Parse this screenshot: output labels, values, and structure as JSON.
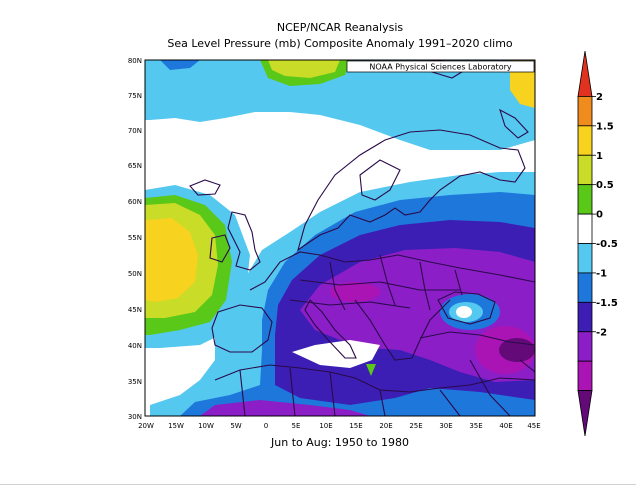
{
  "header": {
    "title_line1": "NCEP/NCAR Reanalysis",
    "title_line2": "Sea Level Pressure (mb) Composite Anomaly 1991–2020 climo"
  },
  "map": {
    "badge": "NOAA Physical Sciences Laboratory",
    "lat_labels": [
      "80N",
      "75N",
      "70N",
      "65N",
      "60N",
      "55N",
      "50N",
      "45N",
      "40N",
      "35N",
      "30N"
    ],
    "lon_labels": [
      "20W",
      "15W",
      "10W",
      "5W",
      "0",
      "5E",
      "10E",
      "15E",
      "20E",
      "25E",
      "30E",
      "35E",
      "40E",
      "45E"
    ],
    "date_range": "Jun to Aug: 1950 to 1980"
  },
  "colorbar": {
    "labels": [
      "2",
      "1.5",
      "1",
      "0.5",
      "0",
      "-0.5",
      "-1",
      "-1.5",
      "-2"
    ],
    "colors": [
      "#e0321e",
      "#f08c1e",
      "#f7d21e",
      "#c8dc28",
      "#5ac818",
      "#ffffff",
      "#55c8f0",
      "#1e78dc",
      "#3c1eb4",
      "#8c1ec8",
      "#aa14b4",
      "#640a78"
    ]
  }
}
